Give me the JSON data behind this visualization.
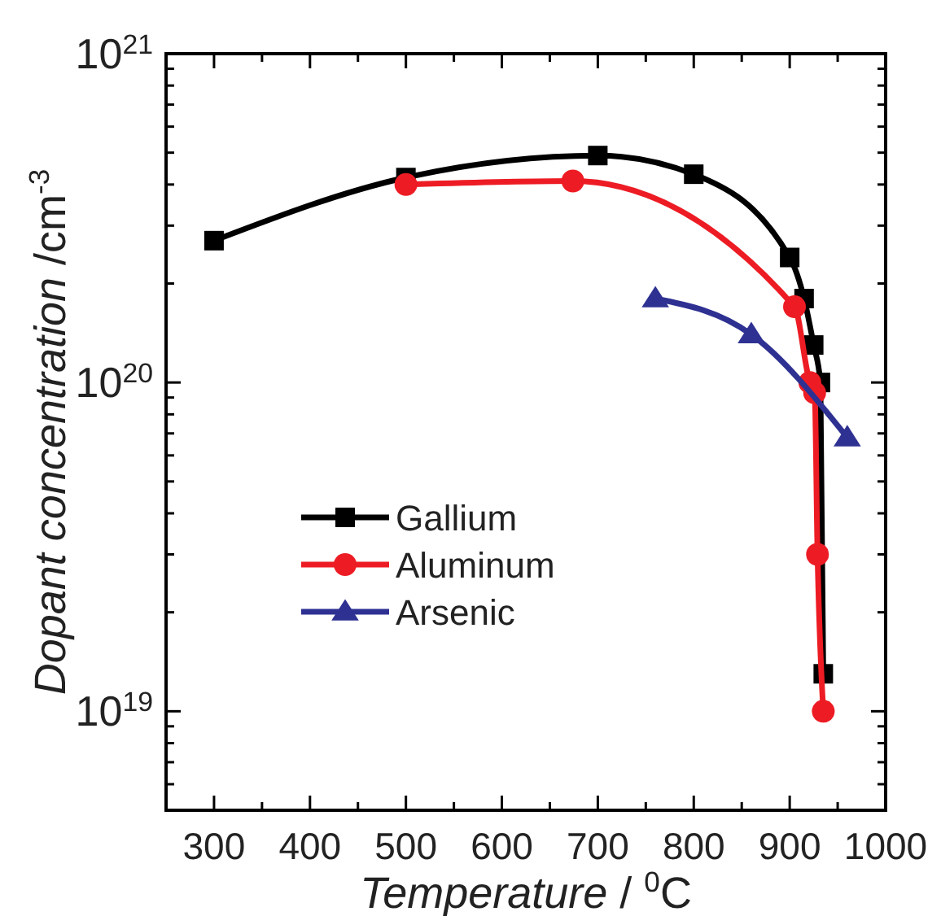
{
  "chart_data": {
    "type": "line",
    "xlabel": "Temperature / $^{0}$C",
    "ylabel": "Dopant concentration /cm$^{-3}$",
    "xlim": [
      250,
      1000
    ],
    "xticks": [
      300,
      {
        "value": 350,
        "label": null
      },
      400,
      {
        "value": 450,
        "label": null
      },
      500,
      {
        "value": 550,
        "label": null
      },
      600,
      {
        "value": 650,
        "label": null
      },
      700,
      {
        "value": 750,
        "label": null
      },
      800,
      {
        "value": 850,
        "label": null
      },
      900,
      {
        "value": 950,
        "label": null
      },
      1000
    ],
    "ylim": [
      5e+18,
      1e+21
    ],
    "log": true,
    "yticks": [
      {
        "value": 6e+18,
        "label": null
      },
      {
        "value": 7e+18,
        "label": null
      },
      {
        "value": 8e+18,
        "label": null
      },
      {
        "value": 9e+18,
        "label": null
      },
      {
        "value": 1e+19,
        "label": "10$^{19}$"
      },
      {
        "value": 2e+19,
        "label": null
      },
      {
        "value": 3e+19,
        "label": null
      },
      {
        "value": 4e+19,
        "label": null
      },
      {
        "value": 5e+19,
        "label": null
      },
      {
        "value": 6e+19,
        "label": null
      },
      {
        "value": 7e+19,
        "label": null
      },
      {
        "value": 8e+19,
        "label": null
      },
      {
        "value": 9e+19,
        "label": null
      },
      {
        "value": 1e+20,
        "label": "10$^{20}$"
      },
      {
        "value": 2e+20,
        "label": null
      },
      {
        "value": 3e+20,
        "label": null
      },
      {
        "value": 4e+20,
        "label": null
      },
      {
        "value": 5e+20,
        "label": null
      },
      {
        "value": 6e+20,
        "label": null
      },
      {
        "value": 7e+20,
        "label": null
      },
      {
        "value": 8e+20,
        "label": null
      },
      {
        "value": 9e+20,
        "label": null
      },
      {
        "value": 1e+21,
        "label": "10$^{21}$"
      }
    ],
    "grid": false,
    "legend": "left",
    "line_style": "solid",
    "series": [
      {
        "name": "Gallium",
        "color": "#000000",
        "marker": "square",
        "x": [
          300,
          500,
          700,
          800,
          900,
          915,
          925,
          932,
          935
        ],
        "values": [
          2.7e+20,
          4.2e+20,
          4.9e+20,
          4.3e+20,
          2.4e+20,
          1.8e+20,
          1.3e+20,
          1e+20,
          1.3e+19
        ]
      },
      {
        "name": "Aluminum",
        "color": "#ed1c24",
        "marker": "circle",
        "x": [
          500,
          674,
          905,
          921,
          926,
          929,
          935
        ],
        "values": [
          4e+20,
          4.1e+20,
          1.7e+20,
          1e+20,
          9.3e+19,
          3e+19,
          1e+19
        ]
      },
      {
        "name": "Arsenic",
        "color": "#2e3192",
        "marker": "triangle",
        "x": [
          760,
          860,
          960
        ],
        "values": [
          1.8e+20,
          1.4e+20,
          6.8e+19
        ]
      }
    ]
  }
}
